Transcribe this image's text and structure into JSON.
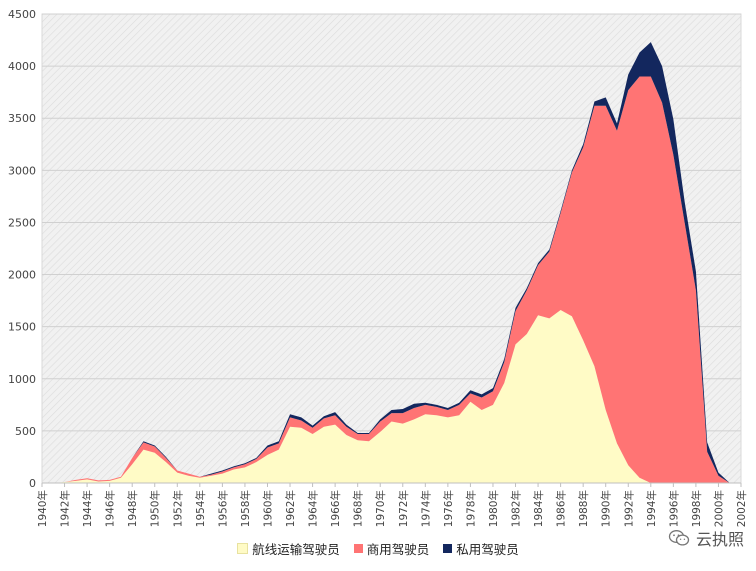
{
  "chart_data": {
    "type": "area",
    "stacked": true,
    "title": "",
    "xlabel": "",
    "ylabel": "",
    "ylim": [
      0,
      4500
    ],
    "yticks": [
      0,
      500,
      1000,
      1500,
      2000,
      2500,
      3000,
      3500,
      4000,
      4500
    ],
    "x_tick_labels": [
      "1940年",
      "1942年",
      "1944年",
      "1946年",
      "1948年",
      "1950年",
      "1952年",
      "1954年",
      "1956年",
      "1958年",
      "1960年",
      "1962年",
      "1964年",
      "1966年",
      "1968年",
      "1970年",
      "1972年",
      "1974年",
      "1976年",
      "1978年",
      "1980年",
      "1982年",
      "1984年",
      "1986年",
      "1988年",
      "1990年",
      "1992年",
      "1994年",
      "1996年",
      "1998年",
      "2000年",
      "2002年"
    ],
    "x": [
      1940,
      1941,
      1942,
      1943,
      1944,
      1945,
      1946,
      1947,
      1948,
      1949,
      1950,
      1951,
      1952,
      1953,
      1954,
      1955,
      1956,
      1957,
      1958,
      1959,
      1960,
      1961,
      1962,
      1963,
      1964,
      1965,
      1966,
      1967,
      1968,
      1969,
      1970,
      1971,
      1972,
      1973,
      1974,
      1975,
      1976,
      1977,
      1978,
      1979,
      1980,
      1981,
      1982,
      1983,
      1984,
      1985,
      1986,
      1987,
      1988,
      1989,
      1990,
      1991,
      1992,
      1993,
      1994,
      1995,
      1996,
      1997,
      1998,
      1999,
      2000,
      2001,
      2002
    ],
    "background": "#f2f2f2",
    "series": [
      {
        "name": "航线运输驾驶员",
        "color": "#fffbc6",
        "values": [
          0,
          0,
          10,
          20,
          35,
          15,
          20,
          50,
          180,
          320,
          290,
          200,
          100,
          70,
          50,
          70,
          90,
          130,
          150,
          200,
          270,
          320,
          540,
          530,
          470,
          540,
          560,
          460,
          410,
          400,
          490,
          590,
          570,
          610,
          660,
          650,
          630,
          650,
          780,
          700,
          750,
          960,
          1330,
          1430,
          1610,
          1580,
          1660,
          1600,
          1370,
          1120,
          700,
          380,
          170,
          50,
          0,
          0,
          0,
          0,
          0,
          0,
          0,
          0,
          0
        ]
      },
      {
        "name": "商用驾驶员",
        "color": "#ff7474",
        "values": [
          0,
          0,
          0,
          10,
          10,
          10,
          10,
          10,
          60,
          70,
          60,
          40,
          20,
          20,
          10,
          10,
          20,
          20,
          30,
          30,
          70,
          60,
          90,
          70,
          60,
          80,
          90,
          80,
          60,
          70,
          100,
          80,
          100,
          110,
          90,
          80,
          70,
          100,
          80,
          120,
          130,
          200,
          320,
          420,
          480,
          640,
          930,
          1380,
          1850,
          2500,
          2920,
          3000,
          3600,
          3850,
          3900,
          3650,
          3150,
          2500,
          1850,
          300,
          70,
          0,
          0
        ]
      },
      {
        "name": "私用驾驶员",
        "color": "#13275e",
        "values": [
          0,
          0,
          0,
          0,
          0,
          0,
          0,
          0,
          0,
          10,
          10,
          10,
          0,
          0,
          0,
          10,
          10,
          10,
          10,
          10,
          20,
          20,
          30,
          30,
          20,
          20,
          30,
          20,
          10,
          10,
          20,
          30,
          40,
          40,
          20,
          20,
          20,
          20,
          30,
          30,
          30,
          30,
          30,
          20,
          20,
          20,
          20,
          20,
          30,
          40,
          80,
          70,
          150,
          230,
          330,
          350,
          340,
          200,
          180,
          90,
          30,
          0,
          0
        ]
      }
    ],
    "legend_position": "bottom"
  },
  "watermark": {
    "text": "云执照",
    "icon": "wechat-icon"
  }
}
